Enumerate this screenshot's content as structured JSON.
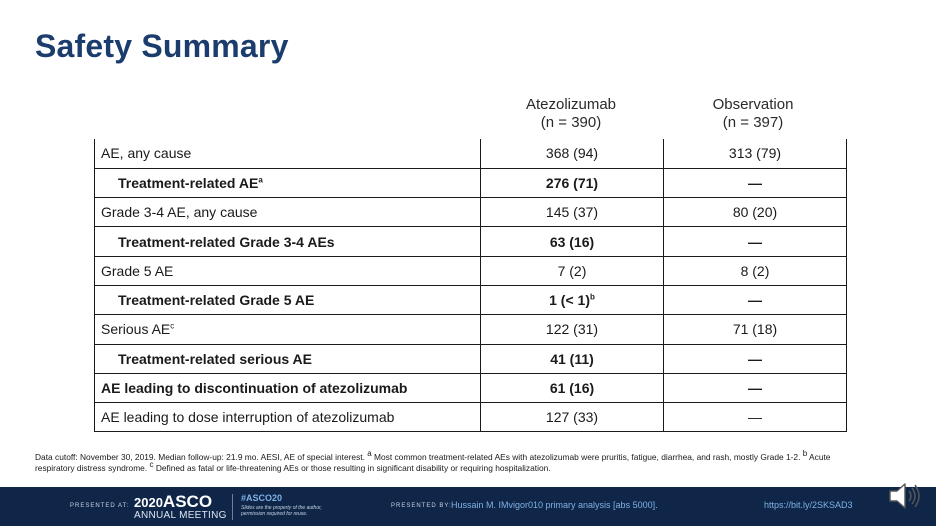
{
  "title": "Safety Summary",
  "columns": {
    "atezo_name": "Atezolizumab",
    "atezo_n": "(n = 390)",
    "obs_name": "Observation",
    "obs_n": "(n = 397)"
  },
  "rows": [
    {
      "label": "AE, any cause",
      "sup": "",
      "atezo": "368 (94)",
      "atezo_sup": "",
      "obs": "313 (79)",
      "bold": false,
      "indent": false
    },
    {
      "label": "Treatment-related AE",
      "sup": "a",
      "atezo": "276 (71)",
      "atezo_sup": "",
      "obs": "—",
      "bold": true,
      "indent": true
    },
    {
      "label": "Grade 3-4 AE, any cause",
      "sup": "",
      "atezo": "145 (37)",
      "atezo_sup": "",
      "obs": "80 (20)",
      "bold": false,
      "indent": false
    },
    {
      "label": "Treatment-related Grade 3-4 AEs",
      "sup": "",
      "atezo": "63 (16)",
      "atezo_sup": "",
      "obs": "—",
      "bold": true,
      "indent": true
    },
    {
      "label": "Grade 5 AE",
      "sup": "",
      "atezo": "7 (2)",
      "atezo_sup": "",
      "obs": "8 (2)",
      "bold": false,
      "indent": false
    },
    {
      "label": "Treatment-related Grade 5 AE",
      "sup": "",
      "atezo": "1 (< 1)",
      "atezo_sup": "b",
      "obs": "—",
      "bold": true,
      "indent": true
    },
    {
      "label": "Serious AE",
      "sup": "c",
      "atezo": "122 (31)",
      "atezo_sup": "",
      "obs": "71 (18)",
      "bold": false,
      "indent": false
    },
    {
      "label": "Treatment-related serious AE",
      "sup": "",
      "atezo": "41 (11)",
      "atezo_sup": "",
      "obs": "—",
      "bold": true,
      "indent": true
    },
    {
      "label": "AE leading to discontinuation of atezolizumab",
      "sup": "",
      "atezo": "61 (16)",
      "atezo_sup": "",
      "obs": "—",
      "bold": true,
      "indent": false
    },
    {
      "label": "AE leading to dose interruption of atezolizumab",
      "sup": "",
      "atezo": "127 (33)",
      "atezo_sup": "",
      "obs": "—",
      "bold": false,
      "indent": false
    }
  ],
  "footnote": {
    "part1": "Data cutoff: November 30, 2019. Median follow-up: 21.9 mo. AESI, AE of special interest. ",
    "sup_a": "a",
    "part2": " Most common treatment-related AEs with atezolizumab were pruritis, fatigue, diarrhea, and rash, mostly Grade 1-2. ",
    "sup_b": "b",
    "part3": " Acute respiratory distress syndrome. ",
    "sup_c": "c",
    "part4": " Defined as fatal or life-threatening AEs or those resulting in significant disability or requiring hospitalization."
  },
  "footer": {
    "presented_at": "PRESENTED AT:",
    "year": "2020",
    "asco": "ASCO",
    "meeting": "ANNUAL MEETING",
    "hashtag": "#ASCO20",
    "rights": "Slides are the property of the author, permission required for reuse.",
    "presented_by": "PRESENTED BY:",
    "presenter": "Hussain  M. IMvigor010 primary analysis [abs 5000].",
    "url": "https://bit.ly/2SKSAD3"
  },
  "colors": {
    "title": "#1b3d6e",
    "footer_bg": "#0f2649",
    "footer_link": "#7fb2e5"
  },
  "icons": {
    "speaker": "speaker-icon"
  }
}
